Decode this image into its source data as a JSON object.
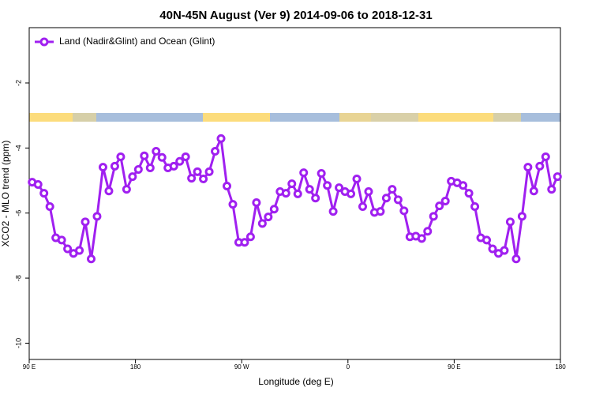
{
  "chart_data": {
    "type": "line",
    "title": "40N-45N August (Ver 9)   2014-09-06 to 2018-12-31",
    "xlabel": "Longitude (deg E)",
    "ylabel": "XCO2 - MLO trend (ppm)",
    "xlim": [
      90,
      540
    ],
    "ylim": [
      -10.5,
      -0.3
    ],
    "xticks": [
      {
        "value": 90,
        "label": "90 E"
      },
      180,
      {
        "value": 270,
        "label": "90 W"
      },
      {
        "value": 360,
        "label": "0"
      },
      {
        "value": 450,
        "label": "90 E"
      },
      {
        "value": 540,
        "label": "180"
      }
    ],
    "yticks": [
      -2,
      -4,
      -6,
      -8,
      -10
    ],
    "legend": "top-left",
    "x": [
      92.5,
      97.5,
      102.5,
      107.5,
      112.5,
      117.5,
      122.5,
      127.5,
      132.5,
      137.5,
      142.5,
      147.5,
      152.5,
      157.5,
      162.5,
      167.5,
      172.5,
      177.5,
      182.5,
      187.5,
      192.5,
      197.5,
      202.5,
      207.5,
      212.5,
      217.5,
      222.5,
      227.5,
      232.5,
      237.5,
      242.5,
      247.5,
      252.5,
      257.5,
      262.5,
      267.5,
      272.5,
      277.5,
      282.5,
      287.5,
      292.5,
      297.5,
      302.5,
      307.5,
      312.5,
      317.5,
      322.5,
      327.5,
      332.5,
      337.5,
      342.5,
      347.5,
      352.5,
      357.5,
      362.5,
      367.5,
      372.5,
      377.5,
      382.5,
      387.5,
      392.5,
      397.5,
      402.5,
      407.5,
      412.5,
      417.5,
      422.5,
      427.5,
      432.5,
      437.5,
      442.5,
      447.5,
      452.5,
      457.5,
      462.5,
      467.5,
      472.5,
      477.5,
      482.5,
      487.5,
      492.5,
      497.5,
      502.5,
      507.5,
      512.5,
      517.5,
      522.5,
      527.5,
      532.5,
      537.5
    ],
    "series": [
      {
        "name": "Land (Nadir&Glint) and Ocean (Glint)",
        "color": "#a020f0",
        "values": [
          -5.05,
          -5.12,
          -5.39,
          -5.8,
          -6.76,
          -6.83,
          -7.1,
          -7.24,
          -7.15,
          -6.27,
          -7.41,
          -6.1,
          -4.59,
          -5.32,
          -4.56,
          -4.27,
          -5.27,
          -4.88,
          -4.66,
          -4.24,
          -4.61,
          -4.1,
          -4.29,
          -4.61,
          -4.56,
          -4.41,
          -4.27,
          -4.93,
          -4.73,
          -4.95,
          -4.73,
          -4.1,
          -3.71,
          -5.17,
          -5.73,
          -6.9,
          -6.9,
          -6.73,
          -5.68,
          -6.32,
          -6.12,
          -5.88,
          -5.34,
          -5.39,
          -5.1,
          -5.41,
          -4.76,
          -5.27,
          -5.54,
          -4.78,
          -5.15,
          -5.95,
          -5.22,
          -5.34,
          -5.41,
          -4.95,
          -5.8,
          -5.34,
          -5.98,
          -5.95,
          -5.54,
          -5.27,
          -5.59,
          -5.93,
          -6.73,
          -6.71,
          -6.78,
          -6.56,
          -6.1,
          -5.78,
          -5.63,
          -5.02,
          -5.07,
          -5.15,
          -5.39,
          -5.8,
          -6.76,
          -6.83,
          -7.1,
          -7.24,
          -7.15,
          -6.27,
          -7.41,
          -6.1,
          -4.59,
          -5.32,
          -4.56,
          -4.27,
          -5.27,
          -4.88
        ]
      }
    ]
  }
}
